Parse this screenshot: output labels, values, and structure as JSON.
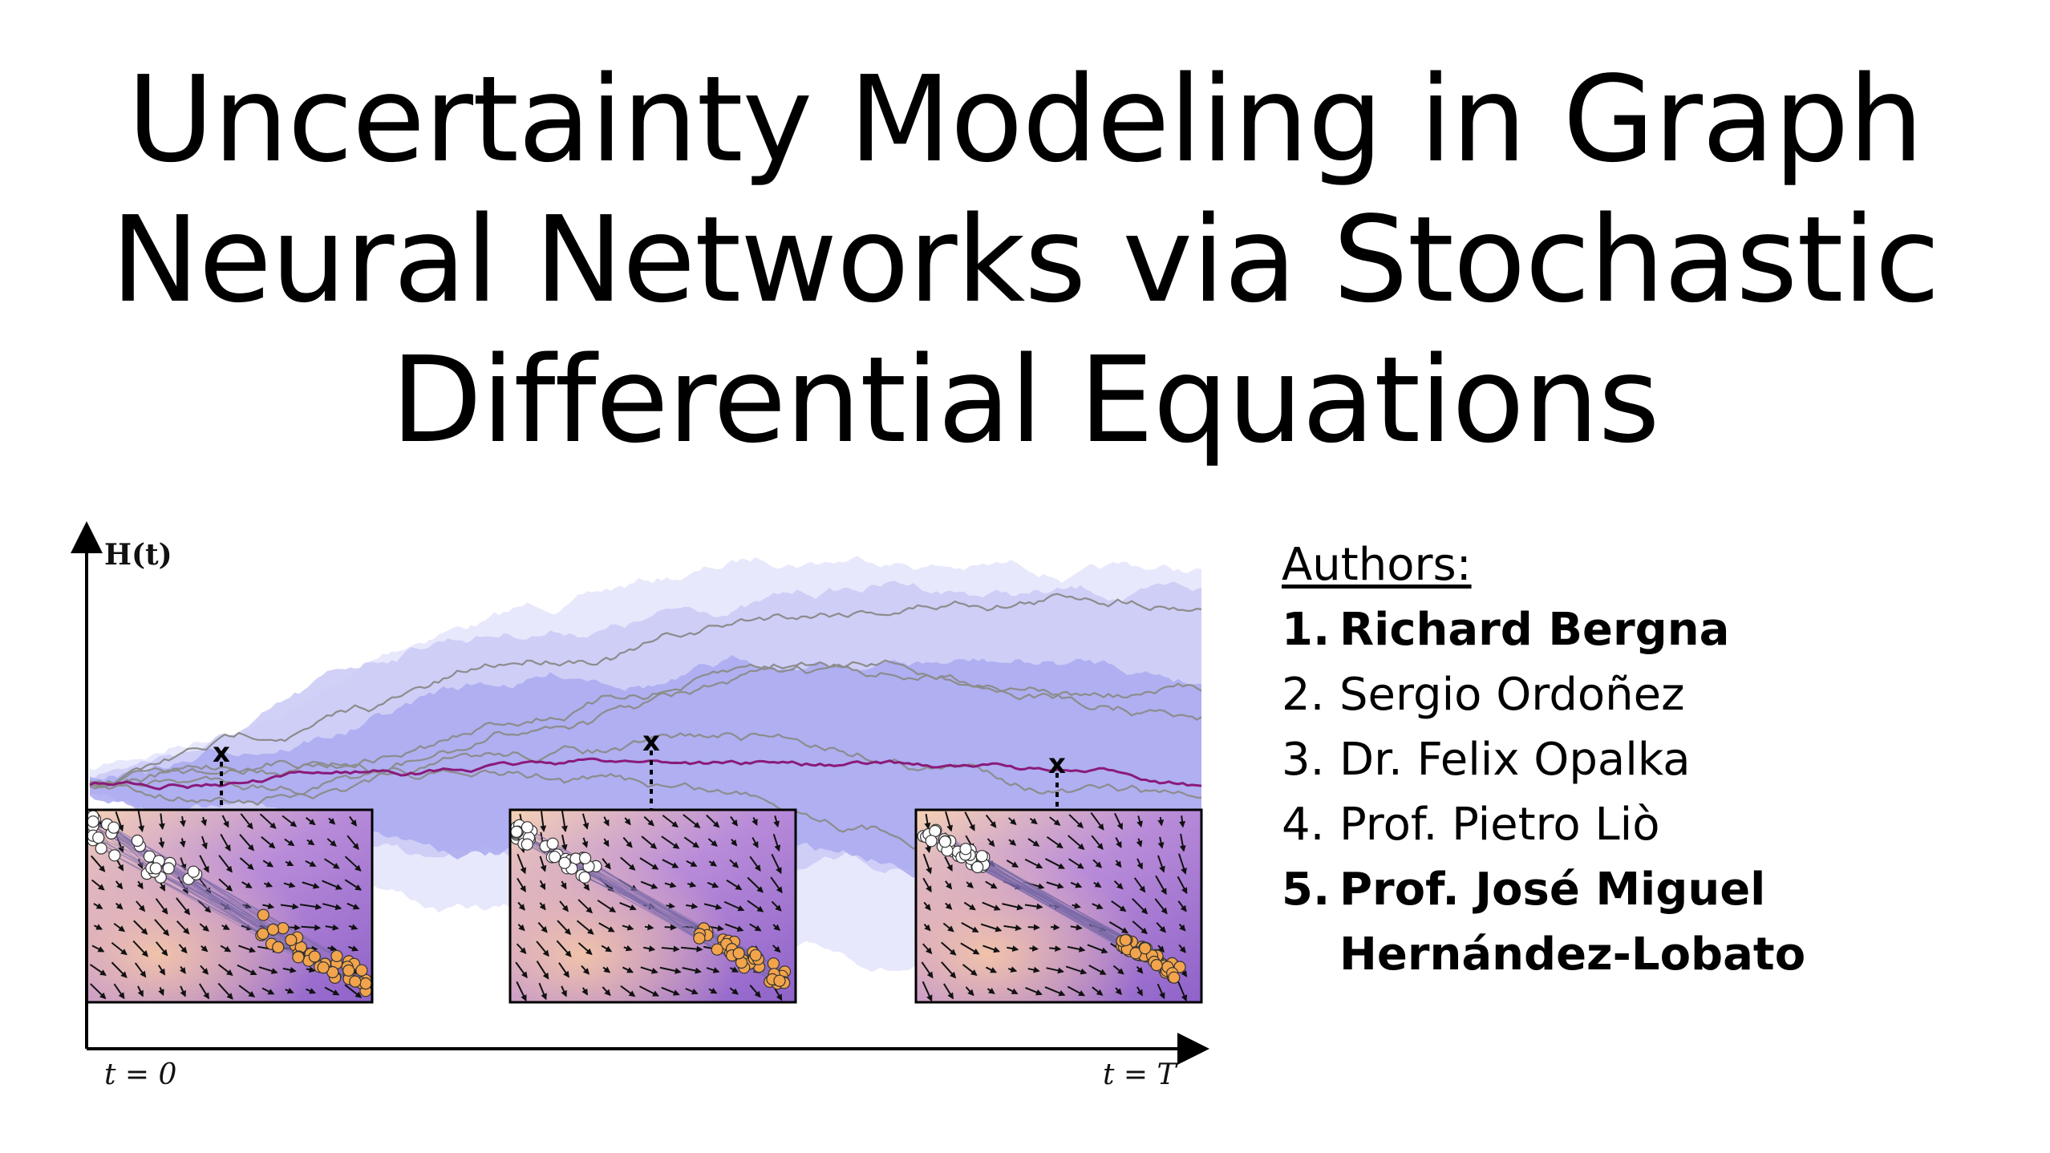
{
  "title": {
    "lines": [
      "Uncertainty Modeling in Graph",
      "Neural Networks via Stochastic",
      "Differential Equations"
    ]
  },
  "figure": {
    "y_axis_label": "H(t)",
    "y_axis_label_bold": "H",
    "y_axis_label_rest": "(t)",
    "x_start_label": "t = 0",
    "x_end_label": "t = T",
    "snapshot_marker": "x",
    "colors": {
      "band_light": "#e4e4fb",
      "band_mid": "#c9c9f6",
      "band_dark": "#a9a9f0",
      "mean_path": "#8a1a7a",
      "sample_paths": "#8c8c8c",
      "node_class_a": "#ffffff",
      "node_class_b": "#f2a44c"
    }
  },
  "authors": {
    "heading": "Authors:",
    "list": [
      {
        "number": "1.",
        "name": "Richard Bergna",
        "bold": true
      },
      {
        "number": "2.",
        "name": "Sergio Ordoñez",
        "bold": false
      },
      {
        "number": "3.",
        "name": "Dr. Felix Opalka",
        "bold": false
      },
      {
        "number": "4.",
        "name": "Prof. Pietro Liò",
        "bold": false
      },
      {
        "number": "5.",
        "name": "Prof. José Miguel Hernández-Lobato",
        "bold": true
      }
    ]
  }
}
